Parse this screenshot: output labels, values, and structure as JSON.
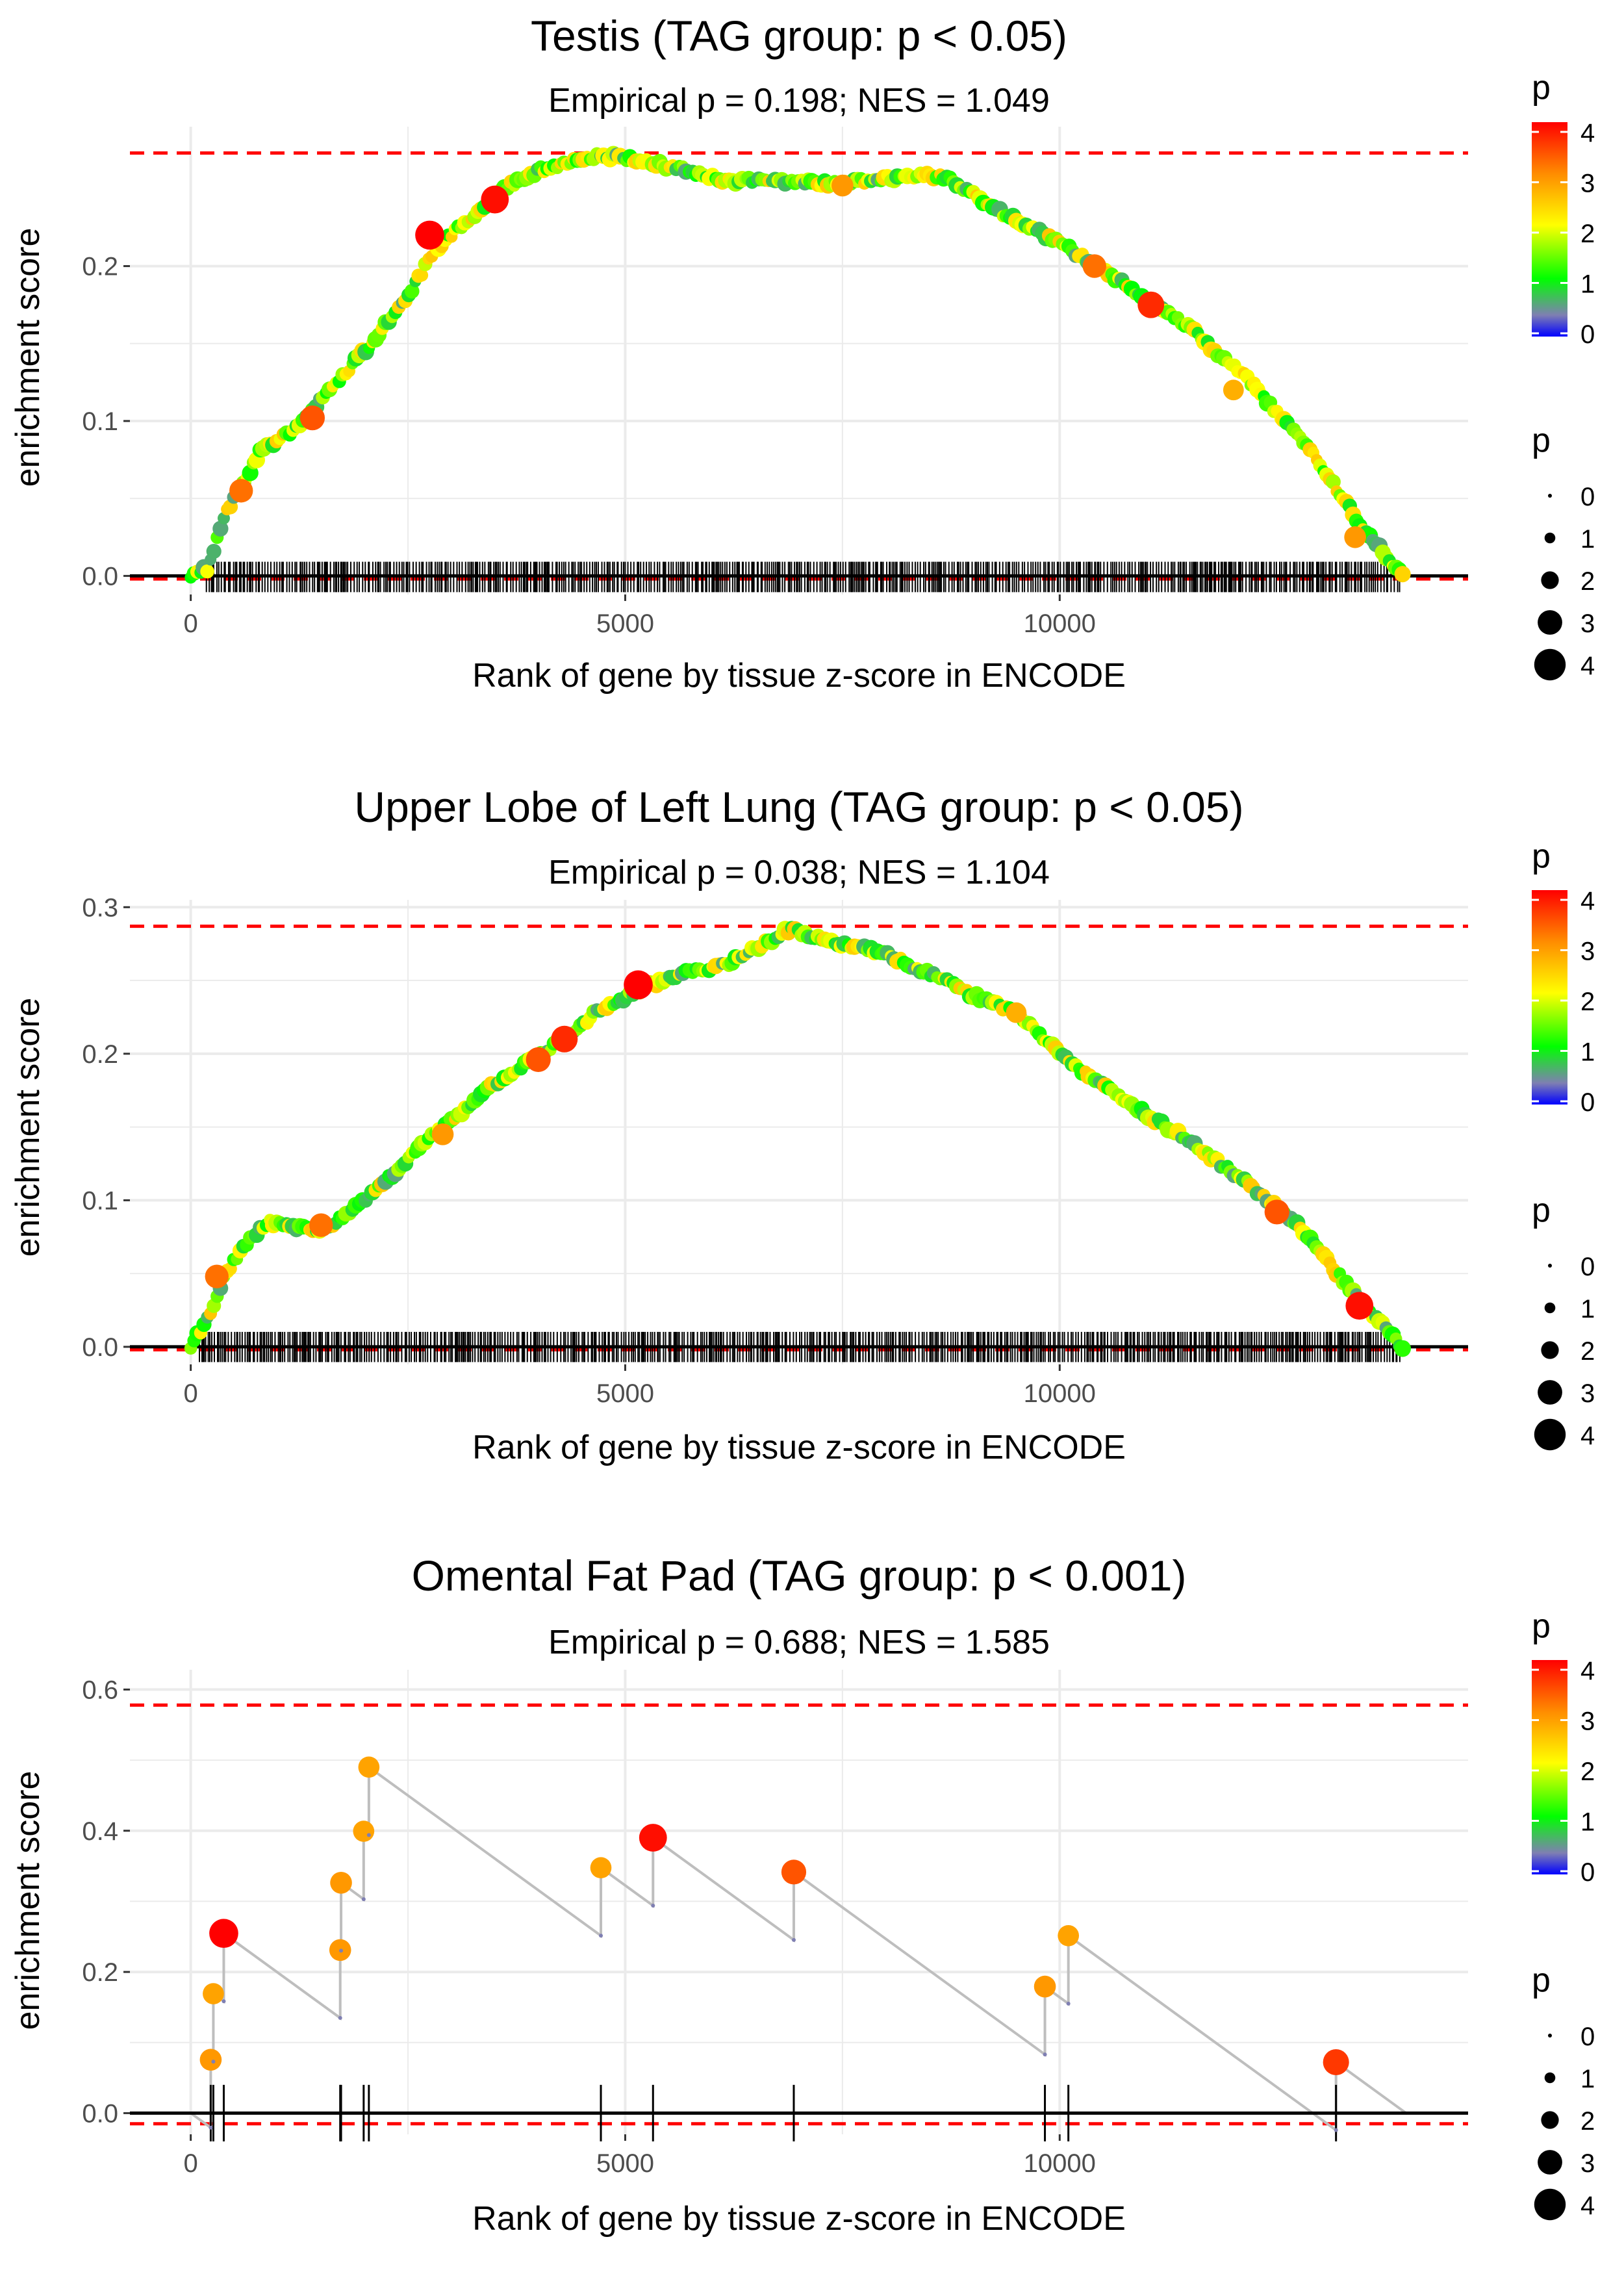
{
  "colors": {
    "grid": "#ebebeb",
    "axis_tick_label": "#4d4d4d",
    "text": "#000000",
    "max_line": "#ff0000",
    "baseline": "#000000",
    "rug": "#000000",
    "path_line": "#bebebe",
    "gradient_stops": [
      "#0000ff",
      "#7f7fb2",
      "#00ff00",
      "#ffff00",
      "#ff8c00",
      "#ff0000"
    ]
  },
  "legend_labels": {
    "color_title": "p",
    "color_ticks": [
      "0",
      "1",
      "2",
      "3",
      "4"
    ],
    "size_title": "p",
    "size_ticks": [
      "0",
      "1",
      "2",
      "3",
      "4"
    ]
  },
  "chart_data": [
    {
      "type": "line",
      "title": "Testis (TAG group: p < 0.05)",
      "subtitle": "Empirical p = 0.198; NES = 1.049",
      "xlabel": "Rank of gene by tissue z-score in ENCODE",
      "ylabel": "enrichment score",
      "xlim": [
        -700,
        14700
      ],
      "ylim": [
        -0.012,
        0.29
      ],
      "xticks": [
        0,
        5000,
        10000
      ],
      "xtick_labels": [
        "0",
        "5000",
        "10000"
      ],
      "yticks": [
        0.0,
        0.1,
        0.2
      ],
      "ytick_labels": [
        "0.0",
        "0.1",
        "0.2"
      ],
      "max_es": 0.273,
      "min_es": -0.002,
      "rug_start": 180,
      "rug_end": 13920,
      "n_genes": 14000,
      "dense": true,
      "curve_knots": [
        [
          0,
          0
        ],
        [
          200,
          0.005
        ],
        [
          400,
          0.04
        ],
        [
          800,
          0.08
        ],
        [
          1200,
          0.095
        ],
        [
          1600,
          0.12
        ],
        [
          2000,
          0.145
        ],
        [
          2500,
          0.18
        ],
        [
          2800,
          0.21
        ],
        [
          3200,
          0.23
        ],
        [
          3600,
          0.25
        ],
        [
          4000,
          0.262
        ],
        [
          4700,
          0.272
        ],
        [
          5200,
          0.268
        ],
        [
          5700,
          0.262
        ],
        [
          6200,
          0.255
        ],
        [
          6800,
          0.255
        ],
        [
          7500,
          0.253
        ],
        [
          8200,
          0.258
        ],
        [
          8700,
          0.258
        ],
        [
          9300,
          0.235
        ],
        [
          10000,
          0.215
        ],
        [
          10700,
          0.19
        ],
        [
          11500,
          0.16
        ],
        [
          12200,
          0.125
        ],
        [
          12900,
          0.08
        ],
        [
          13500,
          0.03
        ],
        [
          13950,
          0.0
        ]
      ],
      "highlights": [
        [
          2750,
          0.22,
          4.2
        ],
        [
          3500,
          0.243,
          4.0
        ],
        [
          11050,
          0.175,
          3.8
        ],
        [
          1400,
          0.102,
          3.5
        ],
        [
          10400,
          0.2,
          3.3
        ],
        [
          580,
          0.055,
          3.3
        ],
        [
          13400,
          0.025,
          3.0
        ],
        [
          7500,
          0.252,
          3.0
        ],
        [
          12000,
          0.12,
          2.8
        ]
      ]
    },
    {
      "type": "line",
      "title": "Upper Lobe of Left Lung (TAG group: p < 0.05)",
      "subtitle": "Empirical p = 0.038; NES = 1.104",
      "xlabel": "Rank of gene by tissue z-score in ENCODE",
      "ylabel": "enrichment score",
      "xlim": [
        -700,
        14700
      ],
      "ylim": [
        -0.012,
        0.305
      ],
      "xticks": [
        0,
        5000,
        10000
      ],
      "xtick_labels": [
        "0",
        "5000",
        "10000"
      ],
      "yticks": [
        0.0,
        0.1,
        0.2,
        0.3
      ],
      "ytick_labels": [
        "0.0",
        "0.1",
        "0.2",
        "0.3"
      ],
      "max_es": 0.287,
      "min_es": -0.002,
      "rug_start": 100,
      "rug_end": 13920,
      "n_genes": 14000,
      "dense": true,
      "curve_knots": [
        [
          0,
          0
        ],
        [
          200,
          0.02
        ],
        [
          400,
          0.05
        ],
        [
          700,
          0.075
        ],
        [
          900,
          0.085
        ],
        [
          1200,
          0.082
        ],
        [
          1500,
          0.08
        ],
        [
          1800,
          0.09
        ],
        [
          2200,
          0.11
        ],
        [
          2700,
          0.14
        ],
        [
          3100,
          0.16
        ],
        [
          3500,
          0.18
        ],
        [
          3900,
          0.195
        ],
        [
          4300,
          0.21
        ],
        [
          4700,
          0.23
        ],
        [
          5200,
          0.245
        ],
        [
          5700,
          0.255
        ],
        [
          6200,
          0.262
        ],
        [
          6900,
          0.285
        ],
        [
          7300,
          0.278
        ],
        [
          8000,
          0.268
        ],
        [
          8500,
          0.255
        ],
        [
          9000,
          0.24
        ],
        [
          9500,
          0.228
        ],
        [
          10000,
          0.2
        ],
        [
          10700,
          0.17
        ],
        [
          11500,
          0.14
        ],
        [
          12200,
          0.11
        ],
        [
          12800,
          0.08
        ],
        [
          13400,
          0.035
        ],
        [
          13950,
          0.0
        ]
      ],
      "highlights": [
        [
          5150,
          0.247,
          4.2
        ],
        [
          13450,
          0.028,
          4.0
        ],
        [
          4300,
          0.21,
          3.8
        ],
        [
          4000,
          0.196,
          3.5
        ],
        [
          12500,
          0.092,
          3.5
        ],
        [
          300,
          0.048,
          3.3
        ],
        [
          1500,
          0.083,
          3.3
        ],
        [
          2900,
          0.145,
          3.0
        ],
        [
          9500,
          0.228,
          2.8
        ]
      ]
    },
    {
      "type": "line",
      "title": "Omental Fat Pad (TAG group: p < 0.001)",
      "subtitle": "Empirical p = 0.688; NES = 1.585",
      "xlabel": "Rank of gene by tissue z-score in ENCODE",
      "ylabel": "enrichment score",
      "xlim": [
        -700,
        14700
      ],
      "ylim": [
        -0.03,
        0.628
      ],
      "xticks": [
        0,
        5000,
        10000
      ],
      "xtick_labels": [
        "0",
        "5000",
        "10000"
      ],
      "yticks": [
        0.0,
        0.2,
        0.4,
        0.6
      ],
      "ytick_labels": [
        "0.0",
        "0.2",
        "0.4",
        "0.6"
      ],
      "max_es": 0.578,
      "min_es": -0.015,
      "rug_start": 0,
      "rug_end": 0,
      "n_genes": 14000,
      "dense": false,
      "hits": [
        [
          230,
          3.0
        ],
        [
          260,
          2.9
        ],
        [
          380,
          4.2
        ],
        [
          1720,
          3.0
        ],
        [
          1730,
          3.0
        ],
        [
          1990,
          2.9
        ],
        [
          2050,
          2.9
        ],
        [
          4720,
          2.9
        ],
        [
          5320,
          4.0
        ],
        [
          6940,
          3.5
        ],
        [
          9830,
          3.0
        ],
        [
          10100,
          2.9
        ],
        [
          13180,
          3.7
        ]
      ]
    }
  ]
}
